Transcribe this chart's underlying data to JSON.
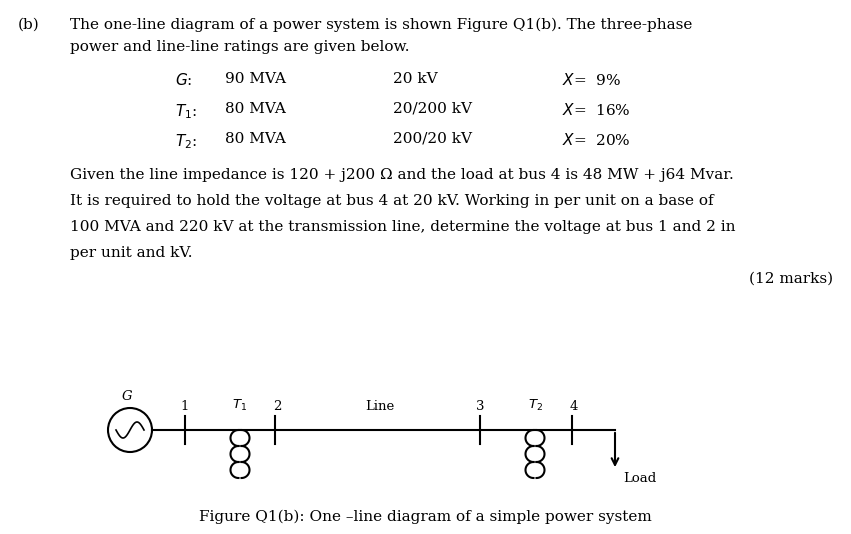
{
  "b_label": "(b)",
  "intro_line1": "The one-line diagram of a power system is shown Figure Q1(b). The three-phase",
  "intro_line2": "power and line-line ratings are given below.",
  "row_labels": [
    "G:",
    "T₁:",
    "T₂:"
  ],
  "row_col1": [
    "90 MVA",
    "80 MVA",
    "80 MVA"
  ],
  "row_col2": [
    "20 kV",
    "20/200 kV",
    "200/20 kV"
  ],
  "row_col3": [
    "X= 9%",
    "X= 16%",
    "X= 20%"
  ],
  "body_lines": [
    "Given the line impedance is 120 + j200 Ω and the load at bus 4 is 48 MW + j64 Mvar.",
    "It is required to hold the voltage at bus 4 at 20 kV. Working in per unit on a base of",
    "100 MVA and 220 kV at the transmission line, determine the voltage at bus 1 and 2 in",
    "per unit and kV."
  ],
  "marks_text": "(12 marks)",
  "figure_caption": "Figure Q1(b): One –line diagram of a simple power system",
  "bg_color": "#ffffff",
  "text_color": "#000000",
  "font_size": 11,
  "small_font": 9.5
}
